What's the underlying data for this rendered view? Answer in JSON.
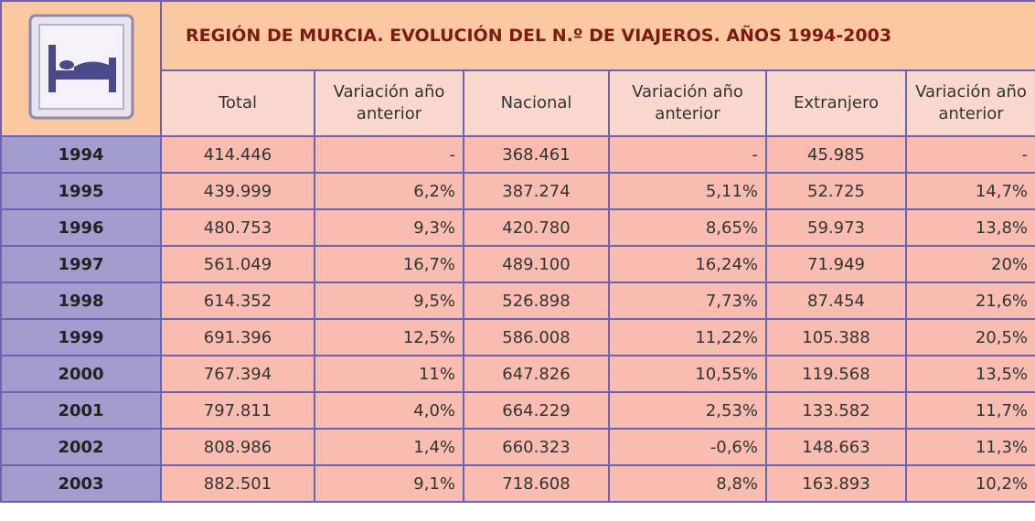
{
  "header": {
    "title": "REGIÓN DE MURCIA. EVOLUCIÓN DEL N.º DE VIAJEROS. AÑOS 1994-2003"
  },
  "table": {
    "columns": [
      "Total",
      "Variación año anterior",
      "Nacional",
      "Variación año anterior",
      "Extranjero",
      "Variación año anterior"
    ],
    "rows": [
      [
        "1994",
        "414.446",
        "-",
        "368.461",
        "-",
        "45.985",
        "-"
      ],
      [
        "1995",
        "439.999",
        "6,2%",
        "387.274",
        "5,11%",
        "52.725",
        "14,7%"
      ],
      [
        "1996",
        "480.753",
        "9,3%",
        "420.780",
        "8,65%",
        "59.973",
        "13,8%"
      ],
      [
        "1997",
        "561.049",
        "16,7%",
        "489.100",
        "16,24%",
        "71.949",
        "20%"
      ],
      [
        "1998",
        "614.352",
        "9,5%",
        "526.898",
        "7,73%",
        "87.454",
        "21,6%"
      ],
      [
        "1999",
        "691.396",
        "12,5%",
        "586.008",
        "11,22%",
        "105.388",
        "20,5%"
      ],
      [
        "2000",
        "767.394",
        "11%",
        "647.826",
        "10,55%",
        "119.568",
        "13,5%"
      ],
      [
        "2001",
        "797.811",
        "4,0%",
        "664.229",
        "2,53%",
        "133.582",
        "11,7%"
      ],
      [
        "2002",
        "808.986",
        "1,4%",
        "660.323",
        "-0,6%",
        "148.663",
        "11,3%"
      ],
      [
        "2003",
        "882.501",
        "9,1%",
        "718.608",
        "8,8%",
        "163.893",
        "10,2%"
      ]
    ]
  }
}
